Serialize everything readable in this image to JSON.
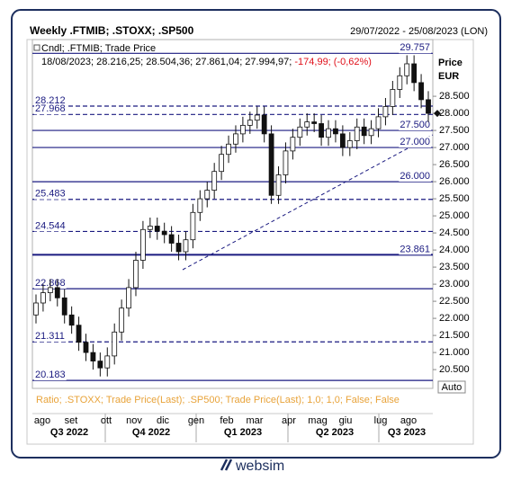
{
  "chart_data": {
    "type": "candlestick",
    "title": "Weekly .FTMIB; .STOXX; .SP500",
    "date_range": "29/07/2022 - 25/08/2023 (LON)",
    "legend_name": "Cndl; .FTMIB; Trade Price",
    "legend_ohlc": "18/08/2023; 28.216,25; 28.504,36; 27.861,04; 27.994,97;",
    "legend_change": "-174,99; (-0,62%)",
    "legend_change_color": "#e0101a",
    "ratio_text": "Ratio; .STOXX; Trade Price(Last); .SP500; Trade Price(Last);  1,0; 1,0; False; False",
    "axis_label": "Price",
    "axis_unit": "EUR",
    "auto_button": "Auto",
    "months": [
      "ago",
      "set",
      "ott",
      "nov",
      "dic",
      "gen",
      "feb",
      "mar",
      "apr",
      "mag",
      "giu",
      "lug",
      "ago"
    ],
    "quarters": [
      "Q3 2022",
      "Q4 2022",
      "Q1 2023",
      "Q2 2023",
      "Q3 2023"
    ],
    "brand": "websim",
    "up_color": "#ffffff",
    "down_color": "#111111",
    "level_color": "#1a1a80",
    "open": [
      22100,
      22450,
      22750,
      22900,
      22600,
      22100,
      21800,
      21300,
      21000,
      20750,
      20550,
      20900,
      21600,
      22300,
      22900,
      23700,
      24600,
      24700,
      24550,
      24450,
      24200,
      23950,
      24300,
      25100,
      25500,
      25750,
      26300,
      26800,
      27100,
      27400,
      27650,
      27800,
      27950,
      27400,
      25600,
      26200,
      26900,
      27300,
      27600,
      27750,
      27700,
      27300,
      27550,
      27400,
      27000,
      27200,
      27600,
      27350,
      27550,
      27900,
      28200,
      28700,
      29100,
      29450,
      28900,
      28400
    ],
    "high": [
      22700,
      23000,
      23150,
      23150,
      22850,
      22350,
      22050,
      21550,
      21250,
      21000,
      21150,
      21850,
      22550,
      23150,
      23950,
      24850,
      24950,
      24950,
      24800,
      24700,
      24450,
      24550,
      25350,
      25750,
      26000,
      26550,
      27050,
      27350,
      27650,
      27900,
      28050,
      28200,
      28200,
      27650,
      26450,
      27150,
      27550,
      27850,
      28000,
      28000,
      27950,
      27800,
      27800,
      27650,
      27450,
      27850,
      27850,
      27800,
      28150,
      28450,
      28950,
      29350,
      29700,
      29700,
      29150,
      28650
    ],
    "low": [
      21850,
      22200,
      22500,
      22350,
      21850,
      21550,
      21050,
      20750,
      20500,
      20300,
      20300,
      20650,
      21350,
      22050,
      22650,
      23450,
      24350,
      24300,
      24200,
      23950,
      23700,
      23700,
      24050,
      24850,
      25250,
      25500,
      26050,
      26550,
      26850,
      27150,
      27400,
      27550,
      27150,
      25350,
      25350,
      25950,
      26650,
      27050,
      27350,
      27450,
      27050,
      27050,
      27150,
      26750,
      26750,
      26950,
      27100,
      27100,
      27300,
      27650,
      27950,
      28450,
      28850,
      28650,
      28150,
      27750
    ],
    "close": [
      22450,
      22750,
      22900,
      22600,
      22100,
      21800,
      21300,
      21000,
      20750,
      20550,
      20900,
      21600,
      22300,
      22900,
      23700,
      24600,
      24700,
      24550,
      24450,
      24200,
      23950,
      24300,
      25100,
      25500,
      25750,
      26300,
      26800,
      27100,
      27400,
      27650,
      27800,
      27950,
      27400,
      25600,
      26200,
      26900,
      27300,
      27600,
      27750,
      27700,
      27300,
      27550,
      27400,
      27000,
      27200,
      27600,
      27350,
      27550,
      27900,
      28200,
      28700,
      29100,
      29450,
      28900,
      28400,
      28000
    ],
    "ylim": [
      19950,
      30160
    ],
    "yticks": [
      {
        "value": 20500,
        "label": "20.500"
      },
      {
        "value": 21000,
        "label": "21.000"
      },
      {
        "value": 21500,
        "label": "21.500"
      },
      {
        "value": 22000,
        "label": "22.000"
      },
      {
        "value": 22500,
        "label": "22.500"
      },
      {
        "value": 23000,
        "label": "23.000"
      },
      {
        "value": 23500,
        "label": "23.500"
      },
      {
        "value": 24000,
        "label": "24.000"
      },
      {
        "value": 24500,
        "label": "24.500"
      },
      {
        "value": 25000,
        "label": "25.000"
      },
      {
        "value": 25500,
        "label": "25.500"
      },
      {
        "value": 26000,
        "label": "26.000"
      },
      {
        "value": 26500,
        "label": "26.500"
      },
      {
        "value": 27000,
        "label": "27.000"
      },
      {
        "value": 27500,
        "label": "27.500"
      },
      {
        "value": 28000,
        "label": "28.000"
      },
      {
        "value": 28500,
        "label": "28.500"
      }
    ],
    "levels": [
      {
        "value": 29757,
        "label": "29.757",
        "style": "solid",
        "label_side": "right"
      },
      {
        "value": 28212,
        "label": "28.212",
        "style": "dashed",
        "label_side": "left"
      },
      {
        "value": 27968,
        "label": "27.968",
        "style": "dashed",
        "label_side": "left"
      },
      {
        "value": 27500,
        "label": "27.500",
        "style": "solid",
        "label_side": "right"
      },
      {
        "value": 27000,
        "label": "27.000",
        "style": "solid",
        "label_side": "right"
      },
      {
        "value": 26000,
        "label": "26.000",
        "style": "solid",
        "label_side": "right"
      },
      {
        "value": 25483,
        "label": "25.483",
        "style": "dashed",
        "label_side": "left"
      },
      {
        "value": 24544,
        "label": "24.544",
        "style": "dashed",
        "label_side": "left"
      },
      {
        "value": 23861,
        "label": "23.861",
        "style": "thick",
        "label_side": "right"
      },
      {
        "value": 22868,
        "label": "22.868",
        "style": "solid",
        "label_side": "left"
      },
      {
        "value": 21311,
        "label": "21.311",
        "style": "dashed",
        "label_side": "left"
      },
      {
        "value": 20183,
        "label": "20.183",
        "style": "solid",
        "label_side": "left"
      }
    ]
  }
}
